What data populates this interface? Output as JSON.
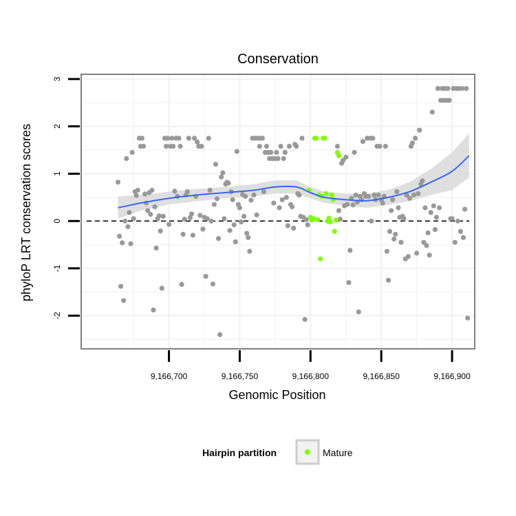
{
  "chart_data": {
    "type": "scatter",
    "title": "Conservation",
    "xlabel": "Genomic Position",
    "ylabel": "phyloP LRT conservation scores",
    "xlim": [
      9166638,
      9166916
    ],
    "ylim": [
      -2.7,
      3.1
    ],
    "x_ticks": [
      9166700,
      9166750,
      9166800,
      9166850,
      9166900
    ],
    "x_tick_labels": [
      "9,166,700",
      "9,166,750",
      "9,166,800",
      "9,166,850",
      "9,166,900"
    ],
    "y_ticks": [
      -2,
      -1,
      0,
      1,
      2,
      3
    ],
    "y_tick_labels": [
      "-2",
      "-1",
      "0",
      "1",
      "2",
      "3"
    ],
    "reference_line": {
      "y": 0,
      "style": "dashed",
      "color": "#000000"
    },
    "grid": true,
    "panel_background": "#ffffff",
    "panel_border_color": "#7f7f7f",
    "grid_color": "#f2f2f2",
    "legend": {
      "title": "Hairpin partition",
      "placement": "bottom",
      "entries": [
        {
          "label": "Mature",
          "color": "#7fff00"
        }
      ]
    },
    "series": [
      {
        "name": "",
        "color": "#999999",
        "points": [
          [
            9166664,
            0.82
          ],
          [
            9166665,
            -0.32
          ],
          [
            9166666,
            -1.38
          ],
          [
            9166667,
            -0.46
          ],
          [
            9166668,
            -1.68
          ],
          [
            9166669,
            0.0
          ],
          [
            9166670,
            1.32
          ],
          [
            9166671,
            -0.12
          ],
          [
            9166672,
            0.18
          ],
          [
            9166673,
            -0.48
          ],
          [
            9166674,
            1.45
          ],
          [
            9166675,
            0.05
          ],
          [
            9166676,
            0.62
          ],
          [
            9166677,
            0.54
          ],
          [
            9166678,
            0.65
          ],
          [
            9166679,
            1.75
          ],
          [
            9166680,
            1.58
          ],
          [
            9166681,
            1.75
          ],
          [
            9166682,
            1.58
          ],
          [
            9166683,
            0.57
          ],
          [
            9166684,
            0.38
          ],
          [
            9166685,
            0.22
          ],
          [
            9166686,
            0.6
          ],
          [
            9166687,
            0.14
          ],
          [
            9166688,
            0.65
          ],
          [
            9166689,
            -1.88
          ],
          [
            9166690,
            0.3
          ],
          [
            9166691,
            -0.57
          ],
          [
            9166692,
            0.05
          ],
          [
            9166693,
            0.11
          ],
          [
            9166694,
            -0.21
          ],
          [
            9166695,
            -1.42
          ],
          [
            9166696,
            0.1
          ],
          [
            9166697,
            1.75
          ],
          [
            9166698,
            1.58
          ],
          [
            9166699,
            1.75
          ],
          [
            9166700,
            -0.07
          ],
          [
            9166701,
            1.58
          ],
          [
            9166702,
            1.75
          ],
          [
            9166703,
            1.58
          ],
          [
            9166704,
            0.63
          ],
          [
            9166705,
            1.75
          ],
          [
            9166706,
            0.52
          ],
          [
            9166707,
            1.75
          ],
          [
            9166708,
            1.58
          ],
          [
            9166709,
            -1.34
          ],
          [
            9166710,
            -0.28
          ],
          [
            9166711,
            0.04
          ],
          [
            9166712,
            0.55
          ],
          [
            9166713,
            0.62
          ],
          [
            9166714,
            1.75
          ],
          [
            9166715,
            0.07
          ],
          [
            9166716,
            0.15
          ],
          [
            9166717,
            -0.3
          ],
          [
            9166718,
            1.75
          ],
          [
            9166719,
            0.52
          ],
          [
            9166720,
            1.67
          ],
          [
            9166721,
            1.58
          ],
          [
            9166722,
            0.12
          ],
          [
            9166723,
            1.58
          ],
          [
            9166724,
            -0.17
          ],
          [
            9166725,
            0.08
          ],
          [
            9166726,
            -1.17
          ],
          [
            9166727,
            0.05
          ],
          [
            9166728,
            1.75
          ],
          [
            9166729,
            0.65
          ],
          [
            9166730,
            0.0
          ],
          [
            9166731,
            -1.33
          ],
          [
            9166732,
            0.35
          ],
          [
            9166733,
            1.2
          ],
          [
            9166734,
            0.47
          ],
          [
            9166735,
            -0.37
          ],
          [
            9166736,
            -2.4
          ],
          [
            9166737,
            0.93
          ],
          [
            9166738,
            1.02
          ],
          [
            9166739,
            0.05
          ],
          [
            9166740,
            0.78
          ],
          [
            9166741,
            0.82
          ],
          [
            9166742,
            0.8
          ],
          [
            9166743,
            -0.2
          ],
          [
            9166744,
            0.62
          ],
          [
            9166745,
            0.45
          ],
          [
            9166746,
            -0.08
          ],
          [
            9166747,
            -0.44
          ],
          [
            9166748,
            1.47
          ],
          [
            9166749,
            0.35
          ],
          [
            9166750,
            0.28
          ],
          [
            9166751,
            -0.02
          ],
          [
            9166752,
            0.56
          ],
          [
            9166753,
            0.1
          ],
          [
            9166754,
            0.52
          ],
          [
            9166755,
            -0.26
          ],
          [
            9166756,
            -0.35
          ],
          [
            9166757,
            -0.64
          ],
          [
            9166758,
            0.44
          ],
          [
            9166759,
            1.75
          ],
          [
            9166760,
            0.55
          ],
          [
            9166761,
            1.75
          ],
          [
            9166762,
            0.13
          ],
          [
            9166763,
            1.75
          ],
          [
            9166764,
            1.58
          ],
          [
            9166765,
            1.75
          ],
          [
            9166766,
            1.75
          ],
          [
            9166767,
            0.62
          ],
          [
            9166768,
            1.45
          ],
          [
            9166769,
            1.58
          ],
          [
            9166770,
            1.45
          ],
          [
            9166771,
            1.32
          ],
          [
            9166772,
            1.45
          ],
          [
            9166773,
            1.32
          ],
          [
            9166774,
            0.38
          ],
          [
            9166775,
            1.32
          ],
          [
            9166776,
            1.45
          ],
          [
            9166777,
            1.32
          ],
          [
            9166778,
            0.28
          ],
          [
            9166779,
            1.58
          ],
          [
            9166780,
            0.45
          ],
          [
            9166781,
            1.32
          ],
          [
            9166782,
            1.45
          ],
          [
            9166783,
            0.5
          ],
          [
            9166784,
            -0.1
          ],
          [
            9166785,
            1.58
          ],
          [
            9166786,
            0.35
          ],
          [
            9166787,
            0.3
          ],
          [
            9166788,
            -0.15
          ],
          [
            9166789,
            1.62
          ],
          [
            9166790,
            1.58
          ],
          [
            9166791,
            0.58
          ],
          [
            9166792,
            0.55
          ],
          [
            9166793,
            0.1
          ],
          [
            9166794,
            1.75
          ],
          [
            9166795,
            0.08
          ],
          [
            9166796,
            -2.08
          ],
          [
            9166797,
            0.03
          ],
          [
            9166798,
            -0.08
          ],
          [
            9166819,
            1.58
          ],
          [
            9166820,
            0.22
          ],
          [
            9166821,
            0.04
          ],
          [
            9166822,
            1.22
          ],
          [
            9166823,
            1.28
          ],
          [
            9166824,
            0.32
          ],
          [
            9166825,
            1.35
          ],
          [
            9166826,
            0.35
          ],
          [
            9166827,
            -1.3
          ],
          [
            9166828,
            -0.62
          ],
          [
            9166829,
            0.48
          ],
          [
            9166830,
            0.34
          ],
          [
            9166831,
            1.45
          ],
          [
            9166832,
            0.55
          ],
          [
            9166833,
            0.4
          ],
          [
            9166834,
            -1.92
          ],
          [
            9166835,
            0.52
          ],
          [
            9166836,
            0.45
          ],
          [
            9166837,
            1.68
          ],
          [
            9166838,
            0.58
          ],
          [
            9166839,
            0.52
          ],
          [
            9166840,
            1.75
          ],
          [
            9166841,
            0.52
          ],
          [
            9166842,
            1.75
          ],
          [
            9166843,
            0.0
          ],
          [
            9166844,
            1.75
          ],
          [
            9166845,
            0.55
          ],
          [
            9166846,
            0.45
          ],
          [
            9166847,
            1.58
          ],
          [
            9166848,
            0.55
          ],
          [
            9166849,
            1.58
          ],
          [
            9166850,
            0.45
          ],
          [
            9166851,
            0.38
          ],
          [
            9166852,
            0.52
          ],
          [
            9166853,
            1.58
          ],
          [
            9166854,
            -0.64
          ],
          [
            9166855,
            -1.25
          ],
          [
            9166856,
            -0.22
          ],
          [
            9166857,
            0.22
          ],
          [
            9166858,
            0.45
          ],
          [
            9166859,
            -0.38
          ],
          [
            9166860,
            -0.28
          ],
          [
            9166861,
            0.62
          ],
          [
            9166862,
            0.28
          ],
          [
            9166863,
            0.08
          ],
          [
            9166864,
            -0.45
          ],
          [
            9166865,
            0.1
          ],
          [
            9166866,
            0.05
          ],
          [
            9166867,
            -0.8
          ],
          [
            9166868,
            0.55
          ],
          [
            9166869,
            -0.75
          ],
          [
            9166870,
            0.48
          ],
          [
            9166871,
            1.58
          ],
          [
            9166872,
            1.65
          ],
          [
            9166873,
            0.55
          ],
          [
            9166874,
            1.75
          ],
          [
            9166875,
            -0.68
          ],
          [
            9166876,
            0.58
          ],
          [
            9166877,
            1.92
          ],
          [
            9166878,
            0.78
          ],
          [
            9166879,
            0.85
          ],
          [
            9166880,
            -0.45
          ],
          [
            9166881,
            0.28
          ],
          [
            9166882,
            -0.52
          ],
          [
            9166883,
            -0.25
          ],
          [
            9166884,
            -0.72
          ],
          [
            9166885,
            0.18
          ],
          [
            9166886,
            2.3
          ],
          [
            9166887,
            0.32
          ],
          [
            9166888,
            -0.18
          ],
          [
            9166889,
            0.08
          ],
          [
            9166890,
            2.8
          ],
          [
            9166891,
            0.28
          ],
          [
            9166892,
            2.55
          ],
          [
            9166893,
            2.8
          ],
          [
            9166894,
            2.55
          ],
          [
            9166895,
            2.8
          ],
          [
            9166896,
            2.55
          ],
          [
            9166897,
            2.8
          ],
          [
            9166898,
            2.55
          ],
          [
            9166899,
            0.05
          ],
          [
            9166900,
            0.05
          ],
          [
            9166901,
            2.8
          ],
          [
            9166902,
            -0.45
          ],
          [
            9166903,
            2.8
          ],
          [
            9166904,
            0.0
          ],
          [
            9166905,
            2.8
          ],
          [
            9166906,
            -0.22
          ],
          [
            9166907,
            2.8
          ],
          [
            9166908,
            -0.35
          ],
          [
            9166909,
            0.25
          ],
          [
            9166910,
            2.8
          ],
          [
            9166911,
            -2.05
          ]
        ]
      },
      {
        "name": "Mature",
        "color": "#7fff00",
        "points": [
          [
            9166799,
            0.65
          ],
          [
            9166800,
            0.08
          ],
          [
            9166801,
            0.02
          ],
          [
            9166802,
            0.05
          ],
          [
            9166803,
            1.75
          ],
          [
            9166804,
            1.75
          ],
          [
            9166805,
            0.03
          ],
          [
            9166806,
            0.55
          ],
          [
            9166807,
            -0.8
          ],
          [
            9166808,
            0.52
          ],
          [
            9166809,
            1.75
          ],
          [
            9166810,
            1.75
          ],
          [
            9166811,
            0.58
          ],
          [
            9166812,
            0.0
          ],
          [
            9166813,
            0.06
          ],
          [
            9166814,
            -0.02
          ],
          [
            9166815,
            0.55
          ],
          [
            9166816,
            0.45
          ],
          [
            9166817,
            -0.22
          ],
          [
            9166818,
            0.02
          ],
          [
            9166819,
            1.45
          ],
          [
            9166820,
            1.38
          ]
        ]
      }
    ],
    "smooth": {
      "color": "#3366ff",
      "band_color": "#d9d9d9",
      "x": [
        9166664,
        9166680,
        9166700,
        9166720,
        9166740,
        9166760,
        9166775,
        9166790,
        9166800,
        9166810,
        9166825,
        9166840,
        9166855,
        9166870,
        9166885,
        9166900,
        9166912
      ],
      "y": [
        0.28,
        0.38,
        0.48,
        0.55,
        0.6,
        0.65,
        0.72,
        0.72,
        0.6,
        0.5,
        0.45,
        0.43,
        0.5,
        0.62,
        0.82,
        1.05,
        1.38
      ],
      "lower": [
        0.05,
        0.22,
        0.35,
        0.42,
        0.48,
        0.52,
        0.58,
        0.58,
        0.48,
        0.38,
        0.32,
        0.28,
        0.34,
        0.42,
        0.55,
        0.65,
        0.92
      ],
      "upper": [
        0.52,
        0.55,
        0.62,
        0.68,
        0.72,
        0.78,
        0.86,
        0.86,
        0.72,
        0.62,
        0.58,
        0.58,
        0.66,
        0.82,
        1.1,
        1.45,
        1.85
      ]
    }
  }
}
